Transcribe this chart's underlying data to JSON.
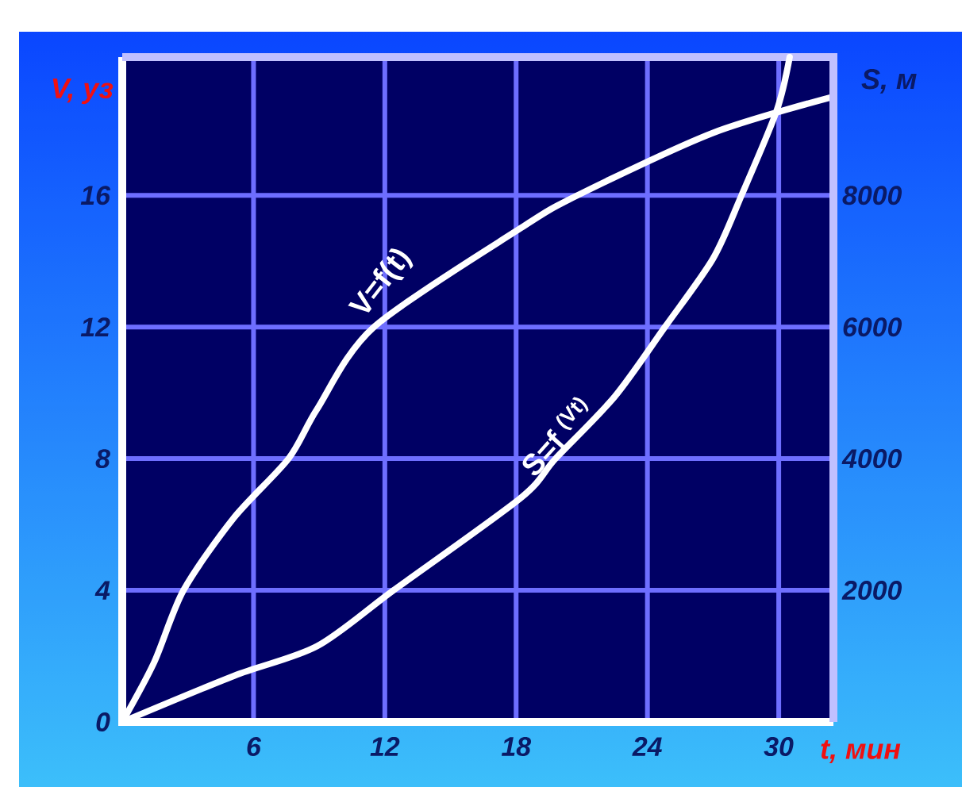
{
  "chart_data": {
    "type": "line",
    "xlabel": "t, мин",
    "ylabel": "V, уз",
    "y2label": "S, м",
    "xlim": [
      0,
      32.5
    ],
    "xticks": [
      6,
      12,
      18,
      24,
      30
    ],
    "ylim": [
      0,
      20.2
    ],
    "yticks": [
      0,
      4,
      8,
      12,
      16
    ],
    "y2lim": [
      0,
      10100
    ],
    "y2ticks": [
      2000,
      4000,
      6000,
      8000
    ],
    "grid": true,
    "marker": "none",
    "line_style": "solid",
    "series": [
      {
        "color": "#ffffff",
        "x": [
          0,
          1.45,
          2.8,
          5.1,
          7.6,
          8.9,
          11.5,
          18.2,
          20.8,
          27,
          32.5
        ],
        "values": [
          0,
          1.8,
          4,
          6.2,
          8,
          9.5,
          12,
          15.0,
          16,
          17.9,
          19.0
        ]
      },
      {
        "color": "#ffffff",
        "axis": "y2",
        "x": [
          0,
          5.1,
          8.9,
          12.4,
          18.2,
          19.8,
          22.5,
          24.8,
          27,
          28.3,
          29.9,
          30.5
        ],
        "values": [
          0,
          700,
          1150,
          2000,
          3400,
          4000,
          4940,
          6000,
          7040,
          8000,
          9280,
          10100
        ]
      }
    ],
    "annotations": [
      "V=f(t)",
      "S=f $^{(Vt)}$"
    ]
  }
}
